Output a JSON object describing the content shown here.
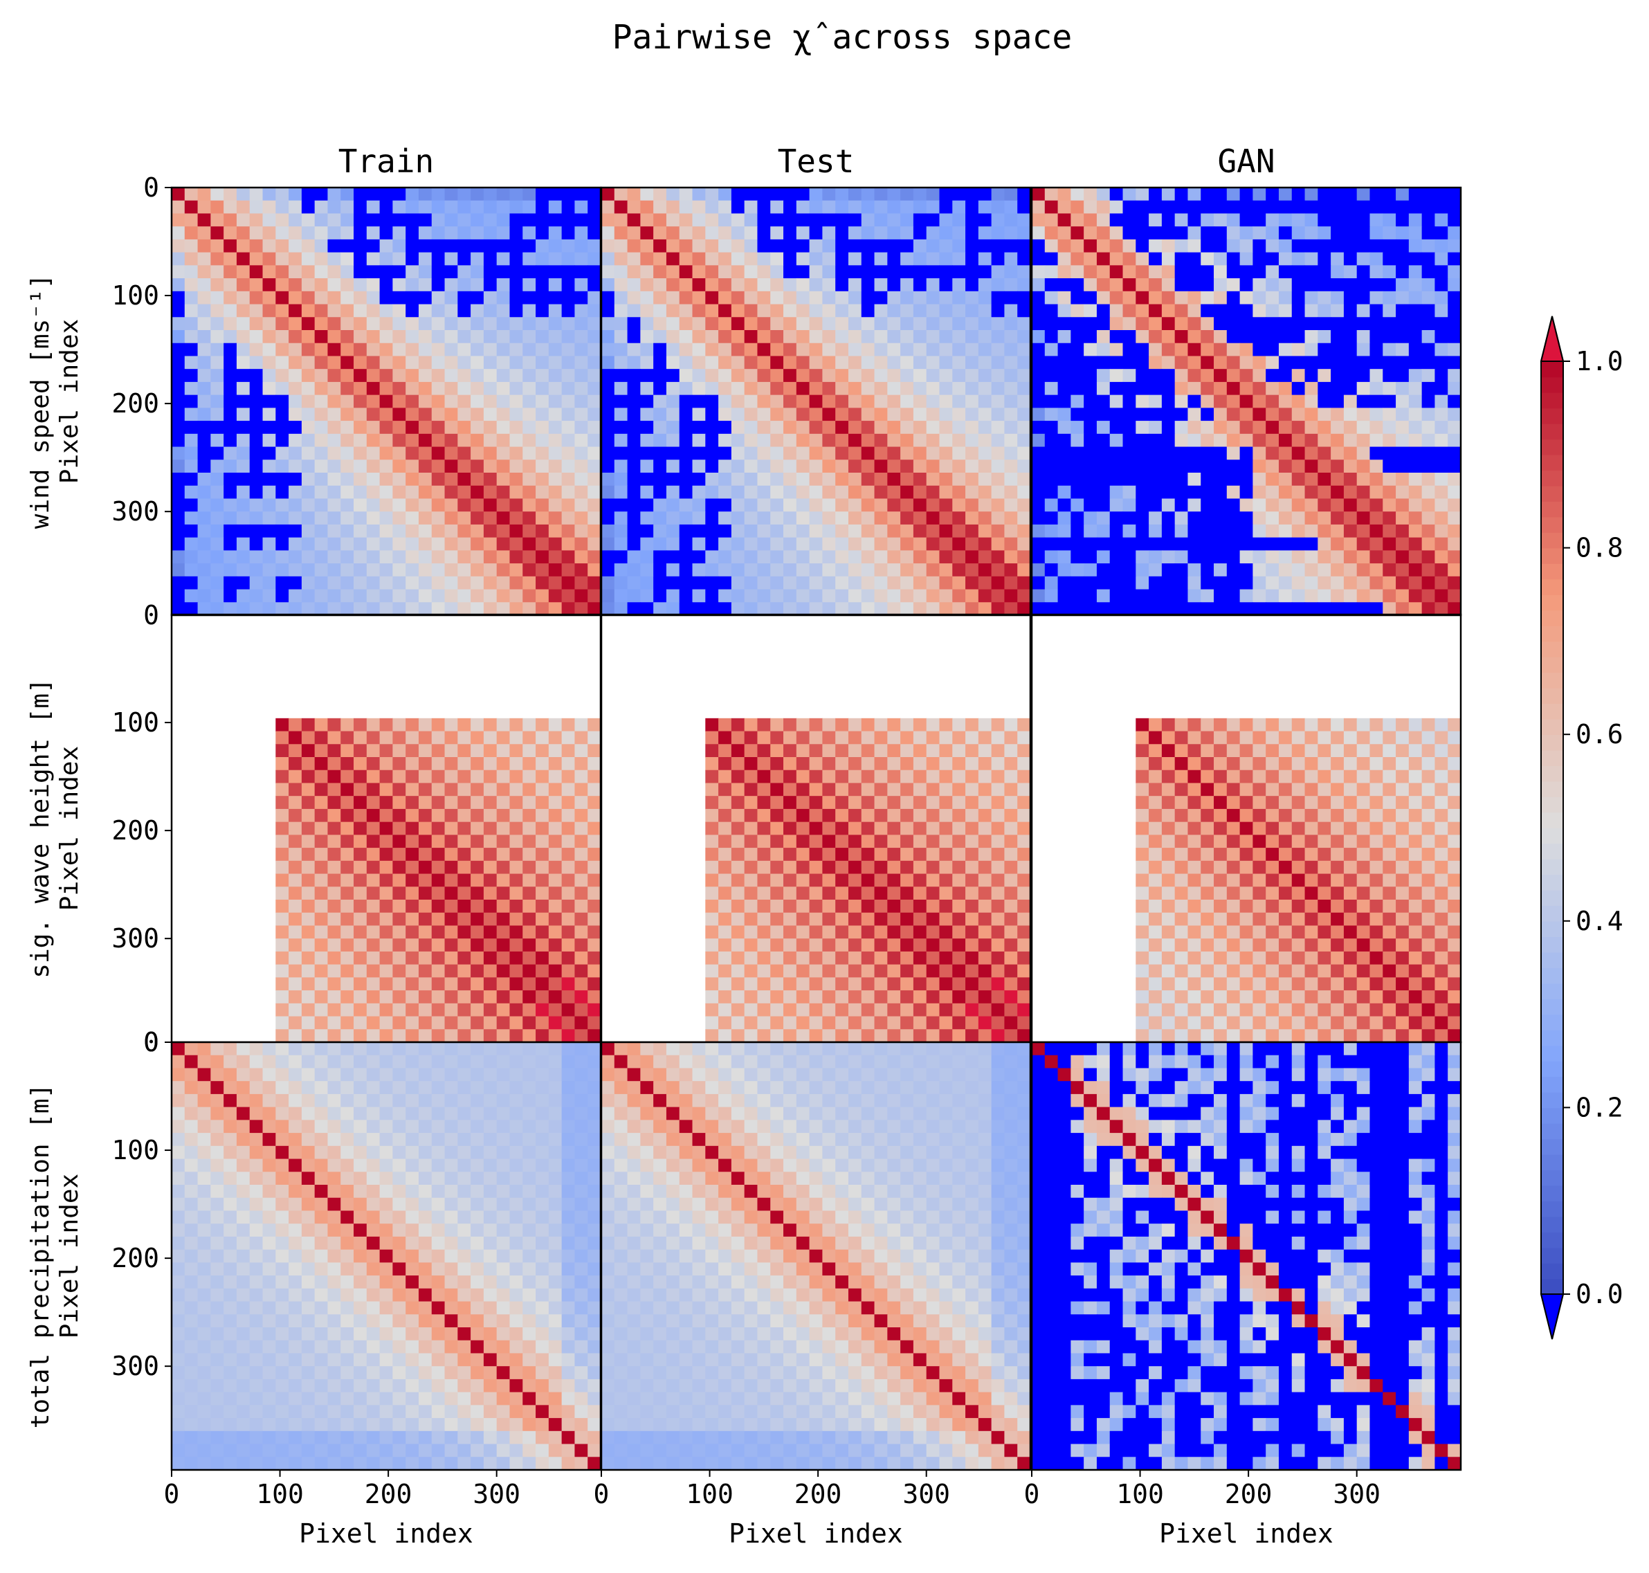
{
  "chart_data": {
    "type": "heatmap",
    "title": "Pairwise χ̂ across space",
    "columns": [
      "Train",
      "Test",
      "GAN"
    ],
    "rows": [
      {
        "id": "wind",
        "label": "wind speed [ms⁻¹]",
        "ylabel": "Pixel index",
        "yticks": [
          0,
          100,
          200,
          300
        ],
        "bottom_tick": "0",
        "style": "structured-blue-upper-left"
      },
      {
        "id": "wave",
        "label": "sig. wave height [m]",
        "ylabel": "Pixel index",
        "yticks": [
          100,
          200,
          300
        ],
        "bottom_tick": "0",
        "style": "masked-ocean"
      },
      {
        "id": "precip",
        "label": "total precipitation [m]",
        "ylabel": "Pixel index",
        "yticks": [
          0,
          100,
          200,
          300
        ],
        "bottom_tick": "",
        "style": "smooth-diagonal"
      }
    ],
    "xlabel": "Pixel index",
    "xticks": [
      0,
      100,
      200,
      300
    ],
    "xlim": [
      0,
      396
    ],
    "ylim": [
      0,
      396
    ],
    "colorbar": {
      "ticks": [
        "0.0",
        "0.2",
        "0.4",
        "0.6",
        "0.8",
        "1.0"
      ],
      "range": [
        0.0,
        1.0
      ],
      "extend": "both",
      "under_color": "#0000ff",
      "over_color": "#dc143c"
    },
    "colormap": "coolwarm",
    "value_ranges": {
      "diagonal": 1.0,
      "typical_near_diagonal": 0.8,
      "typical_far": 0.3,
      "below_range_marked": -0.1
    }
  }
}
